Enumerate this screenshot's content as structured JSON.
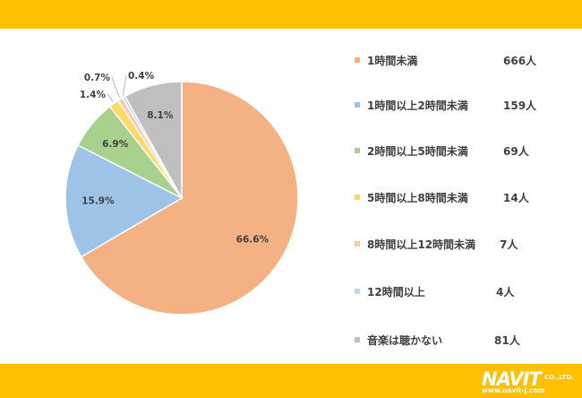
{
  "chart_data": {
    "type": "pie",
    "categories": [
      "1時間未満",
      "1時間以上2時間未満",
      "2時間以上5時間未満",
      "5時間以上8時間未満",
      "8時間以上12時間未満",
      "12時間以上",
      "音楽は聴かない"
    ],
    "values": [
      666,
      159,
      69,
      14,
      7,
      4,
      81
    ],
    "counts": [
      "666人",
      "159人",
      "69人",
      "14人",
      "7人",
      "4人",
      "81人"
    ],
    "percent_labels": [
      "66.6%",
      "15.9%",
      "6.9%",
      "1.4%",
      "0.7%",
      "0.4%",
      "8.1%"
    ],
    "colors": [
      "#F4B183",
      "#9DC3E6",
      "#A9D18E",
      "#FFD966",
      "#F8CBAD",
      "#BDD7EE",
      "#BFBFBF"
    ],
    "legend_placement": "right"
  },
  "brand": {
    "name": "NAVIT",
    "suffix": "CO.,LTD.",
    "url": "www.navit-j.com"
  }
}
